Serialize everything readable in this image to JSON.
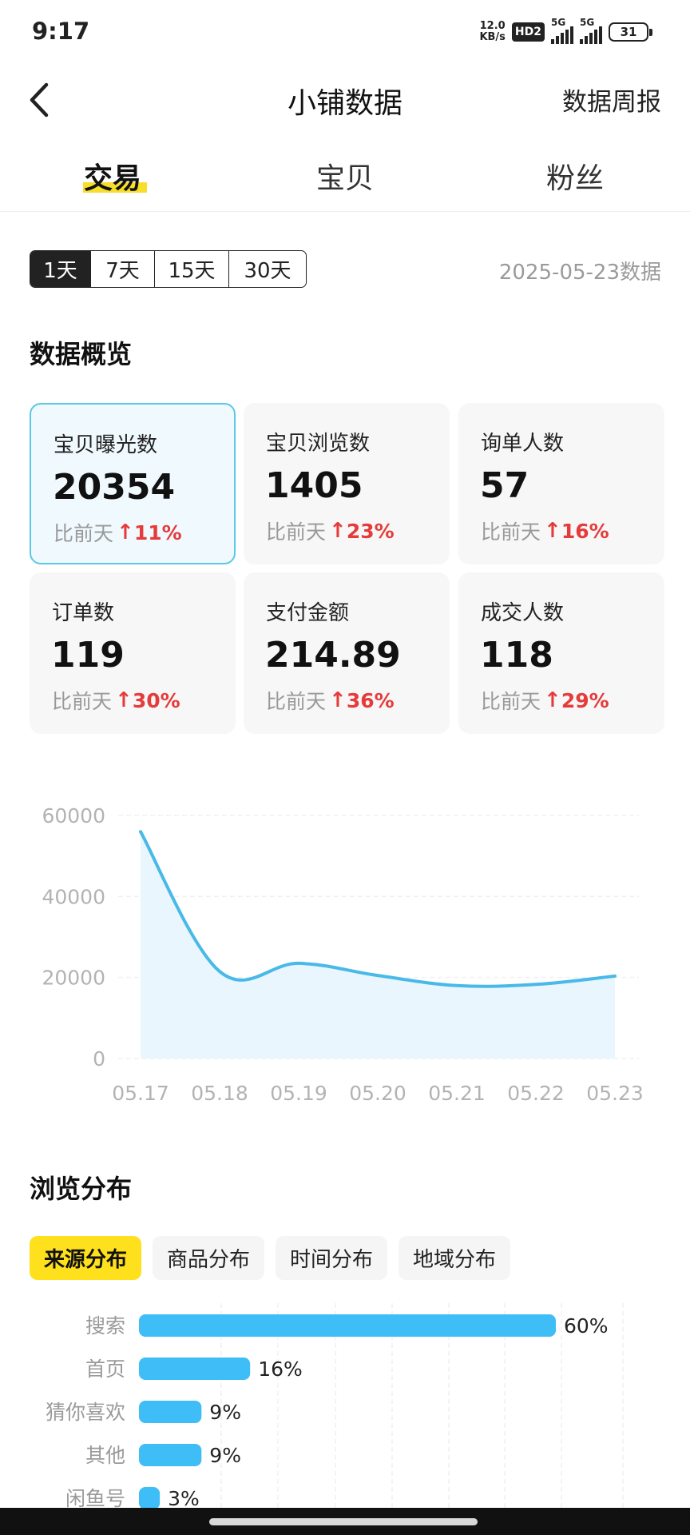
{
  "status": {
    "time": "9:17",
    "net_speed_value": "12.0",
    "net_speed_unit": "KB/s",
    "hd_badge": "HD2",
    "sim1_label": "5G",
    "sim2_label": "5G",
    "battery": "31"
  },
  "nav": {
    "title": "小铺数据",
    "right_link": "数据周报"
  },
  "tabs": [
    {
      "label": "交易",
      "active": true
    },
    {
      "label": "宝贝",
      "active": false
    },
    {
      "label": "粉丝",
      "active": false
    }
  ],
  "date_range": {
    "options": [
      "1天",
      "7天",
      "15天",
      "30天"
    ],
    "selected": "1天",
    "date_note": "2025-05-23数据"
  },
  "overview": {
    "title": "数据概览",
    "compare_label": "比前天",
    "cards": [
      {
        "label": "宝贝曝光数",
        "value": "20354",
        "change": "11%"
      },
      {
        "label": "宝贝浏览数",
        "value": "1405",
        "change": "23%"
      },
      {
        "label": "询单人数",
        "value": "57",
        "change": "16%"
      },
      {
        "label": "订单数",
        "value": "119",
        "change": "30%"
      },
      {
        "label": "支付金额",
        "value": "214.89",
        "change": "36%"
      },
      {
        "label": "成交人数",
        "value": "118",
        "change": "29%"
      }
    ],
    "up_arrow": "↑",
    "accent_up": "#e53b3b",
    "highlight_border": "#5ac8e6"
  },
  "browse_dist": {
    "title": "浏览分布",
    "tabs": [
      "来源分布",
      "商品分布",
      "时间分布",
      "地域分布"
    ],
    "selected_tab": "来源分布"
  },
  "chart_data": [
    {
      "type": "area",
      "title": "",
      "x": [
        "05.17",
        "05.18",
        "05.19",
        "05.20",
        "05.21",
        "05.22",
        "05.23"
      ],
      "series": [
        {
          "values": [
            56000,
            21500,
            23500,
            20500,
            18000,
            18300,
            20354
          ]
        }
      ],
      "yticks": [
        0,
        20000,
        40000,
        60000
      ],
      "ylim": [
        0,
        60000
      ],
      "grid": true,
      "color": "#48b9e8",
      "fill": "#e9f6fd"
    },
    {
      "type": "bar",
      "orientation": "horizontal",
      "categories": [
        "搜索",
        "首页",
        "猜你喜欢",
        "其他",
        "闲鱼号"
      ],
      "values": [
        60,
        16,
        9,
        9,
        3
      ],
      "value_labels": [
        "60%",
        "16%",
        "9%",
        "9%",
        "3%"
      ],
      "xlim": [
        0,
        60
      ],
      "color": "#3fbdf6"
    }
  ]
}
